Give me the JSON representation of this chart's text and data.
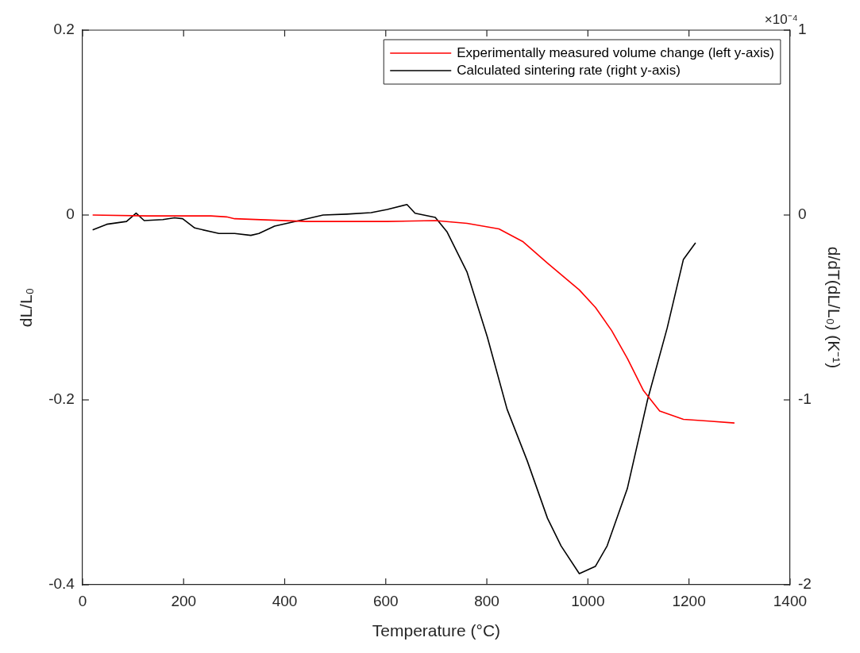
{
  "chart_data": {
    "type": "line",
    "xlabel": "Temperature (°C)",
    "ylabel": "dL/L₀",
    "y2label": "d/dT(dL/L₀) (K⁻¹)",
    "annotations": [
      "×10⁻⁴"
    ],
    "xlim": [
      0,
      1400
    ],
    "xticks": [
      0,
      200,
      400,
      600,
      800,
      1000,
      1200,
      1400
    ],
    "ylim": [
      -0.4,
      0.2
    ],
    "yticks": [
      -0.4,
      -0.2,
      0,
      0.2
    ],
    "y2lim": [
      -2,
      1
    ],
    "y2ticks": [
      -2,
      -1,
      0,
      1
    ],
    "grid": false,
    "legend": "top right",
    "marker": "none",
    "line_style": "solid",
    "series": [
      {
        "name": "Experimentally measured volume change (left y-axis)",
        "color": "#ff0000",
        "axis": "y",
        "x": [
          20,
          127,
          254,
          285,
          301,
          444,
          603,
          698,
          761,
          824,
          872,
          920,
          983,
          1015,
          1047,
          1078,
          1110,
          1142,
          1189,
          1240,
          1290
        ],
        "values": [
          0,
          -0.001,
          -0.001,
          -0.002,
          -0.004,
          -0.007,
          -0.007,
          -0.006,
          -0.009,
          -0.015,
          -0.029,
          -0.052,
          -0.081,
          -0.1,
          -0.125,
          -0.155,
          -0.19,
          -0.212,
          -0.221,
          -0.223,
          -0.225
        ]
      },
      {
        "name": "Calculated sintering rate (right y-axis)",
        "color": "#000000",
        "axis": "y2",
        "x": [
          20,
          48,
          87,
          106,
          122,
          159,
          182,
          198,
          222,
          270,
          301,
          333,
          349,
          380,
          420,
          476,
          523,
          571,
          603,
          642,
          658,
          698,
          721,
          761,
          801,
          840,
          880,
          920,
          947,
          983,
          1015,
          1038,
          1078,
          1118,
          1157,
          1189,
          1213
        ],
        "values": [
          -0.08,
          -0.05,
          -0.035,
          0.01,
          -0.03,
          -0.025,
          -0.015,
          -0.02,
          -0.07,
          -0.1,
          -0.1,
          -0.11,
          -0.1,
          -0.06,
          -0.035,
          0,
          0.005,
          0.013,
          0.03,
          0.057,
          0.01,
          -0.013,
          -0.09,
          -0.31,
          -0.66,
          -1.05,
          -1.33,
          -1.64,
          -1.79,
          -1.94,
          -1.9,
          -1.79,
          -1.48,
          -1.0,
          -0.61,
          -0.24,
          -0.15
        ]
      }
    ]
  }
}
